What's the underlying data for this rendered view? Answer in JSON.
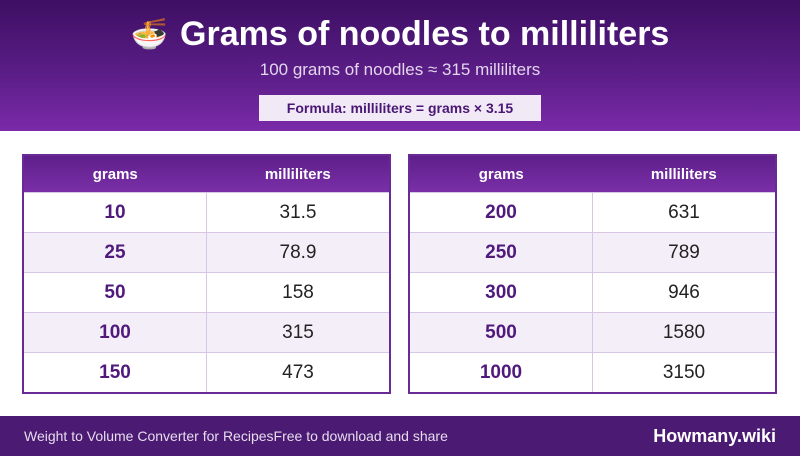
{
  "header": {
    "icon": "noodle-bowl-emoji",
    "icon_glyph": "🍜",
    "title": "Grams of noodles to milliliters",
    "subtitle": "100 grams of noodles ≈ 315 milliliters",
    "formula": "Formula: milliliters = grams × 3.15"
  },
  "tables": {
    "left": {
      "col_grams": "grams",
      "col_ml": "milliliters",
      "rows": [
        {
          "grams": "10",
          "ml": "31.5"
        },
        {
          "grams": "25",
          "ml": "78.9"
        },
        {
          "grams": "50",
          "ml": "158"
        },
        {
          "grams": "100",
          "ml": "315"
        },
        {
          "grams": "150",
          "ml": "473"
        }
      ]
    },
    "right": {
      "col_grams": "grams",
      "col_ml": "milliliters",
      "rows": [
        {
          "grams": "200",
          "ml": "631"
        },
        {
          "grams": "250",
          "ml": "789"
        },
        {
          "grams": "300",
          "ml": "946"
        },
        {
          "grams": "500",
          "ml": "1580"
        },
        {
          "grams": "1000",
          "ml": "3150"
        }
      ]
    }
  },
  "footer": {
    "left_text": "Weight to Volume Converter for Recipes",
    "middle_text": "Free to download and share",
    "brand": "Howmany.wiki"
  },
  "colors": {
    "header_dark": "#3d0f63",
    "header_light": "#7a2aa8",
    "accent": "#4f1a7c",
    "row_alt": "#f4eef9",
    "footer": "#4b1a72"
  }
}
